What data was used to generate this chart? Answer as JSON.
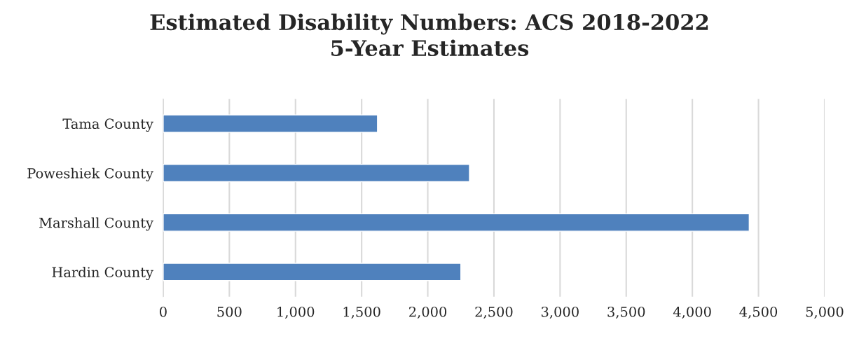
{
  "chart_data": {
    "type": "bar",
    "orientation": "horizontal",
    "title": "Estimated Disability Numbers: ACS 2018-2022\n5-Year Estimates",
    "categories": [
      "Tama County",
      "Poweshiek County",
      "Marshall County",
      "Hardin County"
    ],
    "values": [
      1620,
      2315,
      4430,
      2250
    ],
    "color": "#4f81bd",
    "xlim": [
      0,
      5000
    ],
    "xticks": [
      {
        "value": 0,
        "label": "0"
      },
      {
        "value": 500,
        "label": "500"
      },
      {
        "value": 1000,
        "label": "1,000"
      },
      {
        "value": 1500,
        "label": "1,500"
      },
      {
        "value": 2000,
        "label": "2,000"
      },
      {
        "value": 2500,
        "label": "2,500"
      },
      {
        "value": 3000,
        "label": "3,000"
      },
      {
        "value": 3500,
        "label": "3,500"
      },
      {
        "value": 4000,
        "label": "4,000"
      },
      {
        "value": 4500,
        "label": "4,500"
      },
      {
        "value": 5000,
        "label": "5,000"
      }
    ],
    "grid": "x"
  }
}
